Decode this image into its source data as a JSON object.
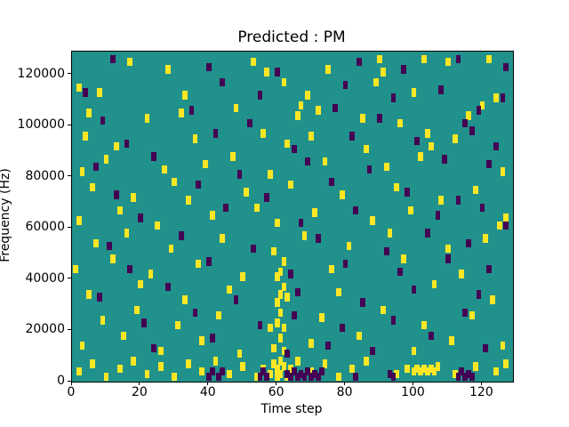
{
  "chart_data": {
    "type": "heatmap",
    "title": "Predicted : PM",
    "xlabel": "Time step",
    "ylabel": "Frequency (Hz)",
    "x_ticks": [
      0,
      20,
      40,
      60,
      80,
      100,
      120
    ],
    "y_ticks": [
      0,
      20000,
      40000,
      60000,
      80000,
      100000,
      120000
    ],
    "xlim": [
      0,
      129
    ],
    "ylim": [
      0,
      129000
    ],
    "legend": "none",
    "grid": false,
    "colors": {
      "background": "#21918c",
      "high": "#fde725",
      "low": "#440154"
    },
    "cell_size": {
      "x": 1.5,
      "y": 3300
    },
    "cells": {
      "high": [
        [
          17,
          125000
        ],
        [
          28,
          122000
        ],
        [
          53,
          125000
        ],
        [
          57,
          121000
        ],
        [
          75,
          122000
        ],
        [
          90,
          126000
        ],
        [
          91,
          121000
        ],
        [
          103,
          126000
        ],
        [
          110,
          125000
        ],
        [
          122,
          126000
        ],
        [
          2,
          115000
        ],
        [
          8,
          113000
        ],
        [
          33,
          112000
        ],
        [
          62,
          117000
        ],
        [
          69,
          112000
        ],
        [
          89,
          117000
        ],
        [
          100,
          113000
        ],
        [
          124,
          111000
        ],
        [
          5,
          105000
        ],
        [
          22,
          103000
        ],
        [
          32,
          105000
        ],
        [
          48,
          107000
        ],
        [
          66,
          104000
        ],
        [
          67,
          108000
        ],
        [
          72,
          106000
        ],
        [
          85,
          103000
        ],
        [
          96,
          101000
        ],
        [
          116,
          104000
        ],
        [
          120,
          108000
        ],
        [
          4,
          96000
        ],
        [
          13,
          92000
        ],
        [
          36,
          95000
        ],
        [
          56,
          97000
        ],
        [
          63,
          93000
        ],
        [
          70,
          96000
        ],
        [
          86,
          91000
        ],
        [
          104,
          97000
        ],
        [
          105,
          92000
        ],
        [
          112,
          95000
        ],
        [
          3,
          82000
        ],
        [
          10,
          87000
        ],
        [
          27,
          83000
        ],
        [
          39,
          85000
        ],
        [
          47,
          88000
        ],
        [
          58,
          81000
        ],
        [
          74,
          86000
        ],
        [
          92,
          84000
        ],
        [
          102,
          88000
        ],
        [
          126,
          82000
        ],
        [
          6,
          76000
        ],
        [
          18,
          72000
        ],
        [
          30,
          78000
        ],
        [
          34,
          71000
        ],
        [
          51,
          74000
        ],
        [
          64,
          77000
        ],
        [
          79,
          73000
        ],
        [
          95,
          76000
        ],
        [
          108,
          71000
        ],
        [
          118,
          75000
        ],
        [
          2,
          63000
        ],
        [
          14,
          67000
        ],
        [
          25,
          61000
        ],
        [
          41,
          65000
        ],
        [
          54,
          68000
        ],
        [
          60,
          62000
        ],
        [
          71,
          66000
        ],
        [
          88,
          63000
        ],
        [
          99,
          67000
        ],
        [
          125,
          61000
        ],
        [
          127,
          64000
        ],
        [
          7,
          54000
        ],
        [
          16,
          58000
        ],
        [
          29,
          52000
        ],
        [
          44,
          56000
        ],
        [
          59,
          51000
        ],
        [
          68,
          57000
        ],
        [
          81,
          53000
        ],
        [
          93,
          58000
        ],
        [
          110,
          52000
        ],
        [
          121,
          56000
        ],
        [
          1,
          44000
        ],
        [
          12,
          48000
        ],
        [
          23,
          42000
        ],
        [
          37,
          46000
        ],
        [
          50,
          41000
        ],
        [
          61,
          43000
        ],
        [
          62,
          47000
        ],
        [
          76,
          44000
        ],
        [
          97,
          48000
        ],
        [
          114,
          42000
        ],
        [
          5,
          34000
        ],
        [
          20,
          38000
        ],
        [
          33,
          32000
        ],
        [
          46,
          36000
        ],
        [
          60,
          31000
        ],
        [
          60,
          41000
        ],
        [
          61,
          34000
        ],
        [
          62,
          37000
        ],
        [
          63,
          33000
        ],
        [
          78,
          35000
        ],
        [
          106,
          38000
        ],
        [
          123,
          32000
        ],
        [
          9,
          24000
        ],
        [
          19,
          28000
        ],
        [
          31,
          22000
        ],
        [
          43,
          26000
        ],
        [
          58,
          21000
        ],
        [
          60,
          23000
        ],
        [
          61,
          27000
        ],
        [
          62,
          21000
        ],
        [
          73,
          25000
        ],
        [
          91,
          28000
        ],
        [
          103,
          22000
        ],
        [
          117,
          26000
        ],
        [
          3,
          14000
        ],
        [
          15,
          18000
        ],
        [
          26,
          12000
        ],
        [
          38,
          16000
        ],
        [
          49,
          11000
        ],
        [
          59,
          13000
        ],
        [
          61,
          17000
        ],
        [
          62,
          12000
        ],
        [
          70,
          15000
        ],
        [
          84,
          18000
        ],
        [
          100,
          12000
        ],
        [
          111,
          16000
        ],
        [
          126,
          14000
        ],
        [
          2,
          4000
        ],
        [
          6,
          7000
        ],
        [
          10,
          2000
        ],
        [
          14,
          5000
        ],
        [
          18,
          8000
        ],
        [
          22,
          3000
        ],
        [
          26,
          6000
        ],
        [
          30,
          2000
        ],
        [
          34,
          7000
        ],
        [
          38,
          4000
        ],
        [
          42,
          8000
        ],
        [
          46,
          3000
        ],
        [
          50,
          6000
        ],
        [
          54,
          2000
        ],
        [
          56,
          5000
        ],
        [
          58,
          3000
        ],
        [
          59,
          7000
        ],
        [
          60,
          2000
        ],
        [
          60,
          5000
        ],
        [
          61,
          8000
        ],
        [
          61,
          3000
        ],
        [
          62,
          6000
        ],
        [
          63,
          2000
        ],
        [
          64,
          5000
        ],
        [
          66,
          8000
        ],
        [
          70,
          4000
        ],
        [
          74,
          7000
        ],
        [
          78,
          2000
        ],
        [
          82,
          5000
        ],
        [
          86,
          8000
        ],
        [
          95,
          3000
        ],
        [
          98,
          5000
        ],
        [
          100,
          4000
        ],
        [
          101,
          5000
        ],
        [
          102,
          4000
        ],
        [
          103,
          5000
        ],
        [
          104,
          4000
        ],
        [
          105,
          5000
        ],
        [
          106,
          4000
        ],
        [
          107,
          6000
        ],
        [
          112,
          3000
        ],
        [
          118,
          6000
        ],
        [
          124,
          4000
        ],
        [
          127,
          7000
        ]
      ],
      "low": [
        [
          12,
          126000
        ],
        [
          40,
          123000
        ],
        [
          60,
          121000
        ],
        [
          84,
          125000
        ],
        [
          97,
          122000
        ],
        [
          113,
          126000
        ],
        [
          127,
          123000
        ],
        [
          4,
          113000
        ],
        [
          44,
          117000
        ],
        [
          55,
          112000
        ],
        [
          80,
          116000
        ],
        [
          94,
          111000
        ],
        [
          108,
          114000
        ],
        [
          126,
          111000
        ],
        [
          9,
          102000
        ],
        [
          35,
          106000
        ],
        [
          52,
          101000
        ],
        [
          77,
          107000
        ],
        [
          90,
          103000
        ],
        [
          115,
          101000
        ],
        [
          119,
          106000
        ],
        [
          16,
          93000
        ],
        [
          42,
          97000
        ],
        [
          65,
          91000
        ],
        [
          82,
          96000
        ],
        [
          101,
          94000
        ],
        [
          117,
          98000
        ],
        [
          124,
          92000
        ],
        [
          7,
          84000
        ],
        [
          24,
          88000
        ],
        [
          49,
          81000
        ],
        [
          69,
          86000
        ],
        [
          87,
          83000
        ],
        [
          109,
          87000
        ],
        [
          122,
          85000
        ],
        [
          13,
          73000
        ],
        [
          37,
          77000
        ],
        [
          57,
          72000
        ],
        [
          76,
          78000
        ],
        [
          98,
          74000
        ],
        [
          113,
          71000
        ],
        [
          20,
          64000
        ],
        [
          45,
          68000
        ],
        [
          67,
          62000
        ],
        [
          83,
          67000
        ],
        [
          107,
          65000
        ],
        [
          120,
          68000
        ],
        [
          127,
          61000
        ],
        [
          11,
          53000
        ],
        [
          32,
          57000
        ],
        [
          53,
          52000
        ],
        [
          72,
          56000
        ],
        [
          92,
          51000
        ],
        [
          104,
          58000
        ],
        [
          116,
          54000
        ],
        [
          17,
          44000
        ],
        [
          40,
          47000
        ],
        [
          64,
          42000
        ],
        [
          80,
          46000
        ],
        [
          96,
          43000
        ],
        [
          110,
          48000
        ],
        [
          122,
          44000
        ],
        [
          8,
          33000
        ],
        [
          28,
          37000
        ],
        [
          48,
          32000
        ],
        [
          66,
          35000
        ],
        [
          85,
          31000
        ],
        [
          100,
          36000
        ],
        [
          119,
          34000
        ],
        [
          21,
          23000
        ],
        [
          36,
          27000
        ],
        [
          55,
          22000
        ],
        [
          65,
          26000
        ],
        [
          79,
          21000
        ],
        [
          94,
          24000
        ],
        [
          115,
          27000
        ],
        [
          24,
          13000
        ],
        [
          41,
          17000
        ],
        [
          63,
          11000
        ],
        [
          75,
          14000
        ],
        [
          88,
          12000
        ],
        [
          105,
          18000
        ],
        [
          121,
          13000
        ],
        [
          40,
          2000
        ],
        [
          41,
          4000
        ],
        [
          43,
          2000
        ],
        [
          44,
          4000
        ],
        [
          55,
          2000
        ],
        [
          56,
          4000
        ],
        [
          57,
          2000
        ],
        [
          63,
          3000
        ],
        [
          64,
          2000
        ],
        [
          65,
          4000
        ],
        [
          66,
          2000
        ],
        [
          67,
          3000
        ],
        [
          68,
          2000
        ],
        [
          69,
          4000
        ],
        [
          70,
          2000
        ],
        [
          71,
          3000
        ],
        [
          72,
          2000
        ],
        [
          73,
          4000
        ],
        [
          83,
          2000
        ],
        [
          93,
          3000
        ],
        [
          94,
          2000
        ],
        [
          113,
          2000
        ],
        [
          114,
          4000
        ],
        [
          115,
          2000
        ],
        [
          116,
          3000
        ],
        [
          117,
          2000
        ]
      ]
    }
  }
}
